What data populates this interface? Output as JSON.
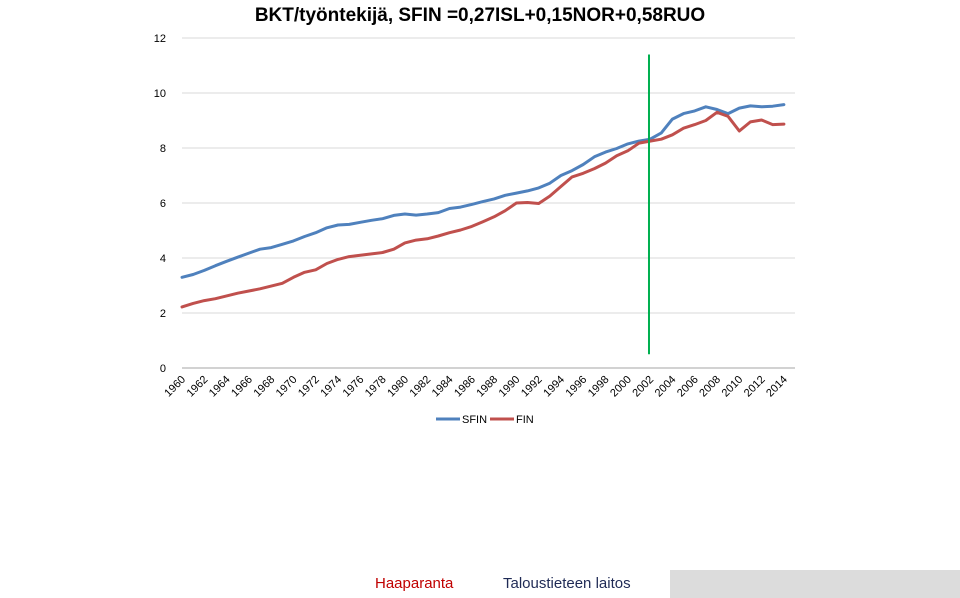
{
  "chart_data": {
    "type": "line",
    "title": "BKT/työntekijä, SFIN =0,27ISL+0,15NOR+0,58RUO",
    "ylim": [
      0,
      12
    ],
    "yticks": [
      0,
      2,
      4,
      6,
      8,
      10,
      12
    ],
    "xlim": [
      1960,
      2015
    ],
    "xtick_labels": [
      "1960",
      "1962",
      "1964",
      "1966",
      "1968",
      "1970",
      "1972",
      "1974",
      "1976",
      "1978",
      "1980",
      "1982",
      "1984",
      "1986",
      "1988",
      "1990",
      "1992",
      "1994",
      "1996",
      "1998",
      "2000",
      "2002",
      "2004",
      "2006",
      "2008",
      "2010",
      "2012",
      "2014"
    ],
    "grid": "horizontal",
    "legend_position": "bottom",
    "x": [
      1960,
      1961,
      1962,
      1963,
      1964,
      1965,
      1966,
      1967,
      1968,
      1969,
      1970,
      1971,
      1972,
      1973,
      1974,
      1975,
      1976,
      1977,
      1978,
      1979,
      1980,
      1981,
      1982,
      1983,
      1984,
      1985,
      1986,
      1987,
      1988,
      1989,
      1990,
      1991,
      1992,
      1993,
      1994,
      1995,
      1996,
      1997,
      1998,
      1999,
      2000,
      2001,
      2002,
      2003,
      2004,
      2005,
      2006,
      2007,
      2008,
      2009,
      2010,
      2011,
      2012,
      2013,
      2014
    ],
    "series": [
      {
        "name": "SFIN",
        "color": "#4f81bd",
        "values": [
          3.3,
          3.4,
          3.55,
          3.72,
          3.88,
          4.03,
          4.18,
          4.32,
          4.38,
          4.5,
          4.62,
          4.78,
          4.92,
          5.1,
          5.2,
          5.22,
          5.3,
          5.37,
          5.43,
          5.55,
          5.6,
          5.56,
          5.6,
          5.65,
          5.8,
          5.85,
          5.95,
          6.05,
          6.15,
          6.28,
          6.36,
          6.44,
          6.55,
          6.72,
          7.0,
          7.18,
          7.4,
          7.68,
          7.85,
          7.98,
          8.15,
          8.25,
          8.32,
          8.55,
          9.05,
          9.25,
          9.35,
          9.5,
          9.4,
          9.25,
          9.45,
          9.53,
          9.5,
          9.52,
          9.58
        ]
      },
      {
        "name": "FIN",
        "color": "#c0504d",
        "values": [
          2.22,
          2.35,
          2.45,
          2.52,
          2.62,
          2.72,
          2.8,
          2.88,
          2.98,
          3.08,
          3.3,
          3.48,
          3.57,
          3.8,
          3.95,
          4.05,
          4.1,
          4.15,
          4.2,
          4.32,
          4.55,
          4.65,
          4.7,
          4.8,
          4.92,
          5.02,
          5.15,
          5.32,
          5.5,
          5.72,
          6.0,
          6.02,
          5.98,
          6.25,
          6.6,
          6.95,
          7.08,
          7.25,
          7.45,
          7.72,
          7.9,
          8.18,
          8.25,
          8.32,
          8.48,
          8.72,
          8.85,
          9.0,
          9.3,
          9.15,
          8.62,
          8.95,
          9.02,
          8.85,
          8.87
        ]
      }
    ],
    "annotations": [
      {
        "type": "vertical-line",
        "x": 2001.9,
        "y_from": 0.5,
        "y_to": 11.4,
        "color": "#00b050"
      }
    ]
  },
  "footer": {
    "brand": "Haaparanta",
    "department": "Taloustieteen laitos",
    "brand_color": "#c00000",
    "department_color": "#1f2a55"
  }
}
